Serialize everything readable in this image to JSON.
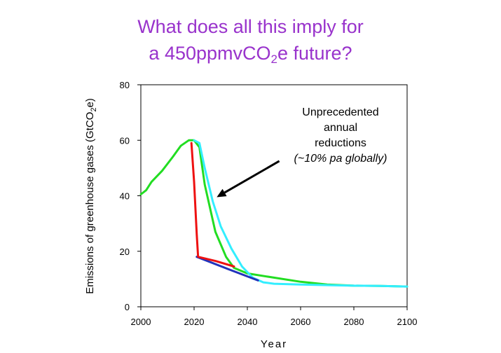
{
  "title": {
    "line1": "What does all this imply for",
    "line2_before": "a 450ppmvCO",
    "line2_sub": "2",
    "line2_after": "e future?"
  },
  "chart_data": {
    "type": "line",
    "xlabel": "Year",
    "ylabel": "Emissions of greenhouse gases (GtCO2e)",
    "ylabel_main": "Emissions of greenhouse gases (GtCO",
    "ylabel_sub": "2",
    "ylabel_end": "e)",
    "xlim": [
      2000,
      2100
    ],
    "ylim": [
      0,
      80
    ],
    "xticks": [
      2000,
      2020,
      2040,
      2060,
      2080,
      2100
    ],
    "yticks": [
      0,
      20,
      40,
      60,
      80
    ],
    "grid": false,
    "series": [
      {
        "color": "#22dd22",
        "x": [
          2000,
          2002,
          2004,
          2008,
          2012,
          2015,
          2018,
          2020,
          2022,
          2024,
          2028,
          2032,
          2035,
          2040,
          2050,
          2060,
          2070,
          2080,
          2090,
          2100
        ],
        "y": [
          40.5,
          42,
          45,
          49,
          54,
          58,
          60,
          60,
          57.5,
          44,
          27,
          18,
          14,
          12,
          10.5,
          9,
          8,
          7.6,
          7.5,
          7.3
        ]
      },
      {
        "color": "#33eeff",
        "x": [
          2020,
          2022,
          2024,
          2027,
          2030,
          2034,
          2038,
          2042,
          2046,
          2050,
          2060,
          2070,
          2080,
          2090,
          2100
        ],
        "y": [
          60,
          59,
          50,
          38,
          29,
          21,
          14.5,
          10.5,
          8.8,
          8.3,
          8,
          7.8,
          7.6,
          7.5,
          7.3
        ]
      },
      {
        "color": "#2233bb",
        "x": [
          2021,
          2033,
          2044
        ],
        "y": [
          18,
          13.5,
          9.5
        ]
      },
      {
        "color": "#ee1111",
        "x": [
          2019,
          2020,
          2021,
          2021.5,
          2028,
          2035
        ],
        "y": [
          59,
          45,
          26,
          18,
          16.5,
          14.5
        ]
      }
    ],
    "annotation": {
      "lines": [
        "Unprecedented",
        "annual",
        "reductions"
      ],
      "italic": "(~10% pa globally)",
      "arrow_tail": [
        2052,
        52.5
      ],
      "arrow_head": [
        2028.5,
        39.5
      ]
    }
  }
}
